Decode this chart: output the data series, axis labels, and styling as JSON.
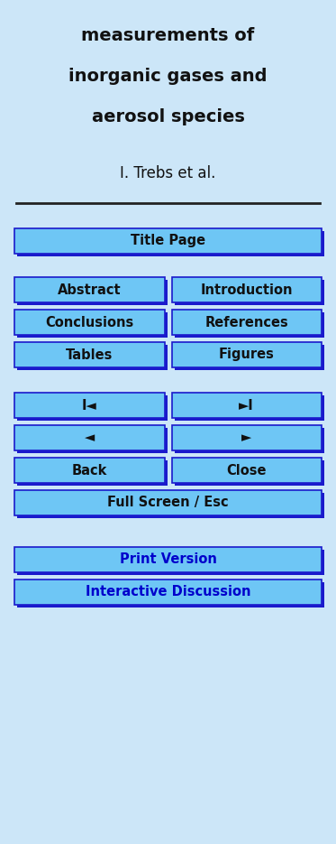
{
  "background_color": "#cce6f8",
  "title_lines": [
    "measurements of",
    "inorganic gases and",
    "aerosol species"
  ],
  "author": "I. Trebs et al.",
  "title_fontsize": 14,
  "author_fontsize": 12,
  "button_bg": "#6ec6f5",
  "button_border_dark": "#1a1acc",
  "button_border_light": "#5599dd",
  "button_text_color": "#111111",
  "button_text_color_blue": "#0000cc",
  "button_fontsize": 10.5,
  "fig_width": 3.73,
  "fig_height": 9.35,
  "dpi": 100
}
